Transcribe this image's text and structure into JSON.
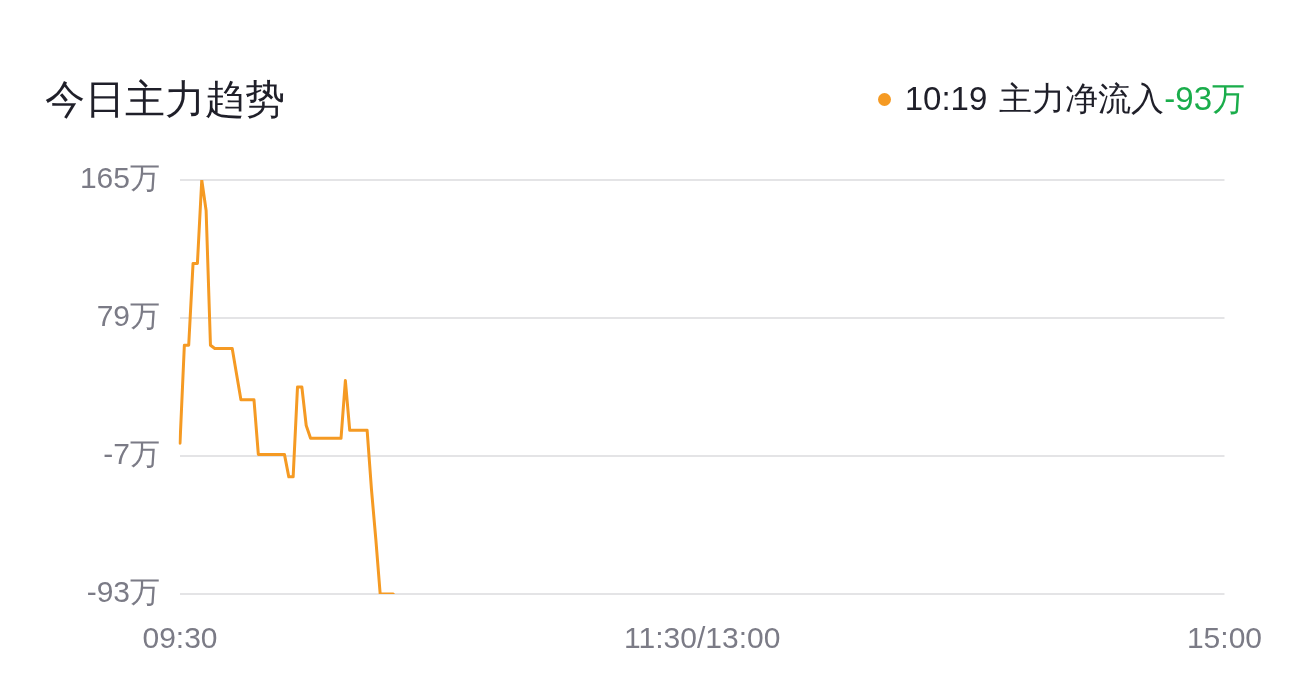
{
  "chart_data": {
    "type": "line",
    "title": "今日主力趋势",
    "legend": "top right",
    "annotations": [
      "10:19",
      "-93万"
    ],
    "categories": [
      "09:30",
      null,
      null,
      null,
      null,
      null,
      null,
      null,
      null,
      null,
      null,
      null,
      null,
      null,
      null,
      null,
      null,
      null,
      null,
      null,
      null,
      null,
      null,
      null,
      null,
      null,
      null,
      null,
      null,
      null,
      null,
      null,
      null,
      null,
      null,
      null,
      null,
      null,
      null,
      null,
      null,
      null,
      null,
      null,
      null,
      null,
      null,
      null,
      null,
      null,
      null,
      null,
      null,
      null,
      null,
      null,
      null,
      null,
      null,
      null,
      null,
      null,
      null,
      null,
      null,
      null,
      null,
      null,
      null,
      null,
      null,
      null,
      null,
      null,
      null,
      null,
      null,
      null,
      null,
      null,
      null,
      null,
      null,
      null,
      null,
      null,
      null,
      null,
      null,
      null,
      null,
      null,
      null,
      null,
      null,
      null,
      null,
      null,
      null,
      null,
      null,
      null,
      null,
      null,
      null,
      null,
      null,
      null,
      null,
      null,
      null,
      null,
      null,
      null,
      null,
      null,
      null,
      null,
      null,
      null,
      "11:30/13:00",
      null,
      null,
      null,
      null,
      null,
      null,
      null,
      null,
      null,
      null,
      null,
      null,
      null,
      null,
      null,
      null,
      null,
      null,
      null,
      null,
      null,
      null,
      null,
      null,
      null,
      null,
      null,
      null,
      null,
      null,
      null,
      null,
      null,
      null,
      null,
      null,
      null,
      null,
      null,
      null,
      null,
      null,
      null,
      null,
      null,
      null,
      null,
      null,
      null,
      null,
      null,
      null,
      null,
      null,
      null,
      null,
      null,
      null,
      null,
      null,
      null,
      null,
      null,
      null,
      null,
      null,
      null,
      null,
      null,
      null,
      null,
      null,
      null,
      null,
      null,
      null,
      null,
      null,
      null,
      null,
      null,
      null,
      null,
      null,
      null,
      null,
      null,
      null,
      null,
      null,
      null,
      null,
      null,
      null,
      null,
      null,
      null,
      null,
      null,
      null,
      null,
      null,
      null,
      null,
      null,
      null,
      null,
      null,
      null,
      null,
      null,
      null,
      null,
      null,
      null,
      null,
      null,
      null,
      null,
      "15:00"
    ],
    "series": [
      {
        "name": "主力净流入",
        "color": "#f59a23",
        "values": [
          1,
          62,
          62,
          113,
          113,
          165,
          146,
          62,
          60,
          60,
          60,
          60,
          60,
          44,
          28,
          28,
          28,
          28,
          -6,
          -6,
          -6,
          -6,
          -6,
          -6,
          -6,
          -20,
          -20,
          36,
          36,
          12,
          4,
          4,
          4,
          4,
          4,
          4,
          4,
          4,
          40,
          9,
          9,
          9,
          9,
          9,
          -28,
          -59,
          -93,
          -93,
          -93,
          -93,
          null,
          null,
          null,
          null,
          null,
          null,
          null,
          null,
          null,
          null,
          null,
          null,
          null,
          null,
          null,
          null,
          null,
          null,
          null,
          null,
          null,
          null,
          null,
          null,
          null,
          null,
          null,
          null,
          null,
          null,
          null,
          null,
          null,
          null,
          null,
          null,
          null,
          null,
          null,
          null,
          null,
          null,
          null,
          null,
          null,
          null,
          null,
          null,
          null,
          null,
          null,
          null,
          null,
          null,
          null,
          null,
          null,
          null,
          null,
          null,
          null,
          null,
          null,
          null,
          null,
          null,
          null,
          null,
          null,
          null,
          null,
          null,
          null,
          null,
          null,
          null,
          null,
          null,
          null,
          null,
          null,
          null,
          null,
          null,
          null,
          null,
          null,
          null,
          null,
          null,
          null,
          null,
          null,
          null,
          null,
          null,
          null,
          null,
          null,
          null,
          null,
          null,
          null,
          null,
          null,
          null,
          null,
          null,
          null,
          null,
          null,
          null,
          null,
          null,
          null,
          null,
          null,
          null,
          null,
          null,
          null,
          null,
          null,
          null,
          null,
          null,
          null,
          null,
          null,
          null,
          null,
          null,
          null,
          null,
          null,
          null,
          null,
          null,
          null,
          null,
          null,
          null,
          null,
          null,
          null,
          null,
          null,
          null,
          null,
          null,
          null,
          null,
          null,
          null,
          null,
          null,
          null,
          null,
          null,
          null,
          null,
          null,
          null,
          null,
          null,
          null,
          null,
          null,
          null,
          null,
          null,
          null,
          null,
          null,
          null,
          null,
          null,
          null,
          null,
          null,
          null,
          null,
          null,
          null,
          null,
          null,
          null,
          null,
          null,
          null,
          null
        ]
      }
    ],
    "ylim": [
      -93,
      165
    ],
    "yticks": [
      {
        "value": 165,
        "label": "165万"
      },
      {
        "value": 79,
        "label": "79万"
      },
      {
        "value": -7,
        "label": "-7万"
      },
      {
        "value": -93,
        "label": "-93万"
      }
    ],
    "grid": "y"
  }
}
